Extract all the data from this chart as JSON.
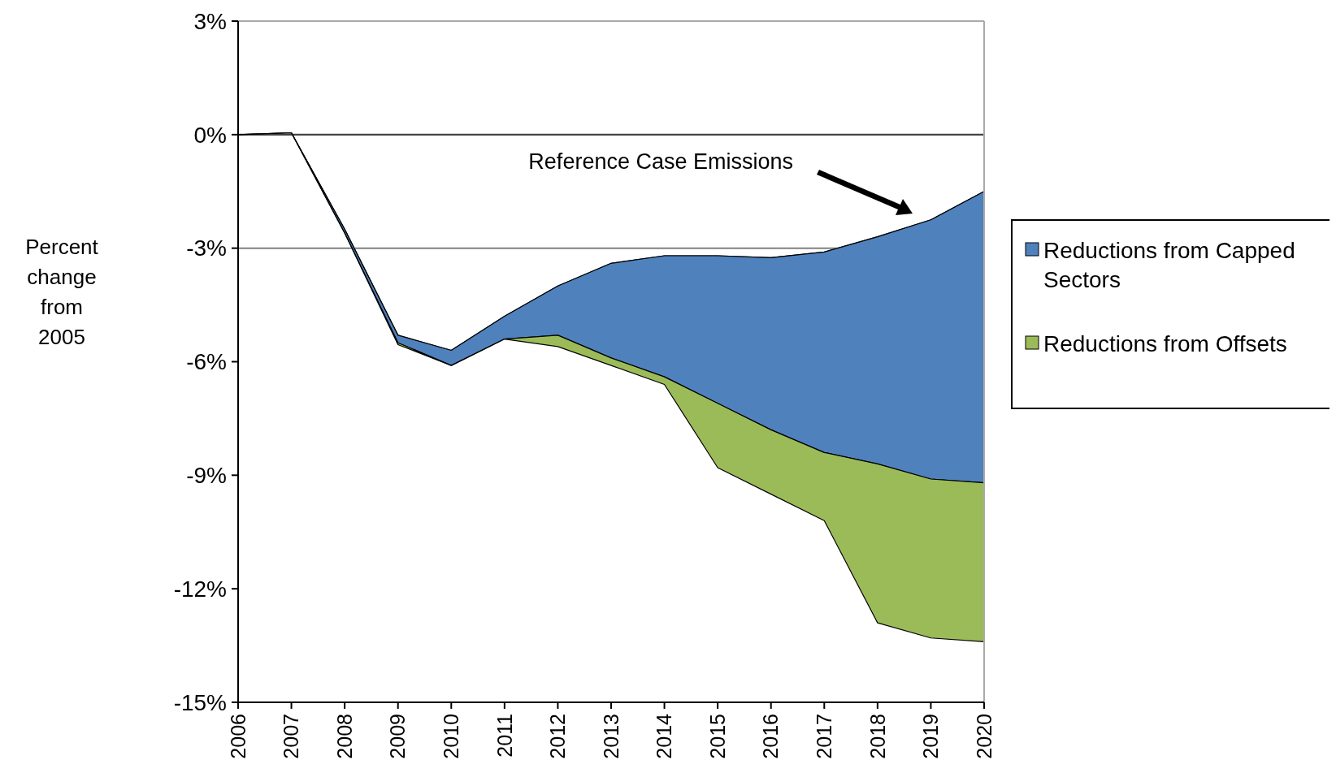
{
  "chart_data": {
    "type": "area",
    "stacked": true,
    "ylabel": "Percent change from 2005",
    "legend": "right",
    "grid": false,
    "x": [
      2006,
      2007,
      2008,
      2009,
      2010,
      2011,
      2012,
      2013,
      2014,
      2015,
      2016,
      2017,
      2018,
      2019,
      2020
    ],
    "xlim": [
      2006,
      2020
    ],
    "xticks": [
      2006,
      2007,
      2008,
      2009,
      2010,
      2011,
      2012,
      2013,
      2014,
      2015,
      2016,
      2017,
      2018,
      2019,
      2020
    ],
    "ylim": [
      -15,
      3
    ],
    "yticks": [
      {
        "value": 3,
        "label": "3%"
      },
      {
        "value": 0,
        "label": "0%"
      },
      {
        "value": -3,
        "label": "-3%"
      },
      {
        "value": -6,
        "label": "-6%"
      },
      {
        "value": -9,
        "label": "-9%"
      },
      {
        "value": -12,
        "label": "-12%"
      },
      {
        "value": -15,
        "label": "-15%"
      }
    ],
    "ref_lines": [
      {
        "axis": "y",
        "value": 0,
        "color": "#404040"
      },
      {
        "axis": "y",
        "value": -3,
        "color": "#808080"
      }
    ],
    "series": [
      {
        "type": "area",
        "color": "#ffffff",
        "values": [
          0,
          0.05,
          -2.5,
          -5.3,
          -5.7,
          -4.8,
          -4.0,
          -3.4,
          -3.2,
          -3.2,
          -3.25,
          -3.1,
          -2.7,
          -2.25,
          -1.5
        ]
      },
      {
        "name": "Reductions from Capped Sectors",
        "color": "#4f81bd",
        "values": [
          0,
          0,
          -0.1,
          -0.2,
          -0.4,
          -0.6,
          -1.3,
          -2.5,
          -3.2,
          -3.9,
          -4.55,
          -5.3,
          -6.0,
          -6.85,
          -7.7
        ]
      },
      {
        "name": "Reductions from Offsets",
        "color": "#9bbb59",
        "values": [
          0,
          0,
          0,
          -0.05,
          0,
          0,
          -0.3,
          -0.2,
          -0.2,
          -1.7,
          -1.7,
          -1.8,
          -4.2,
          -4.2,
          -4.2
        ]
      }
    ],
    "annotations": [
      "Reference Case Emissions"
    ]
  }
}
